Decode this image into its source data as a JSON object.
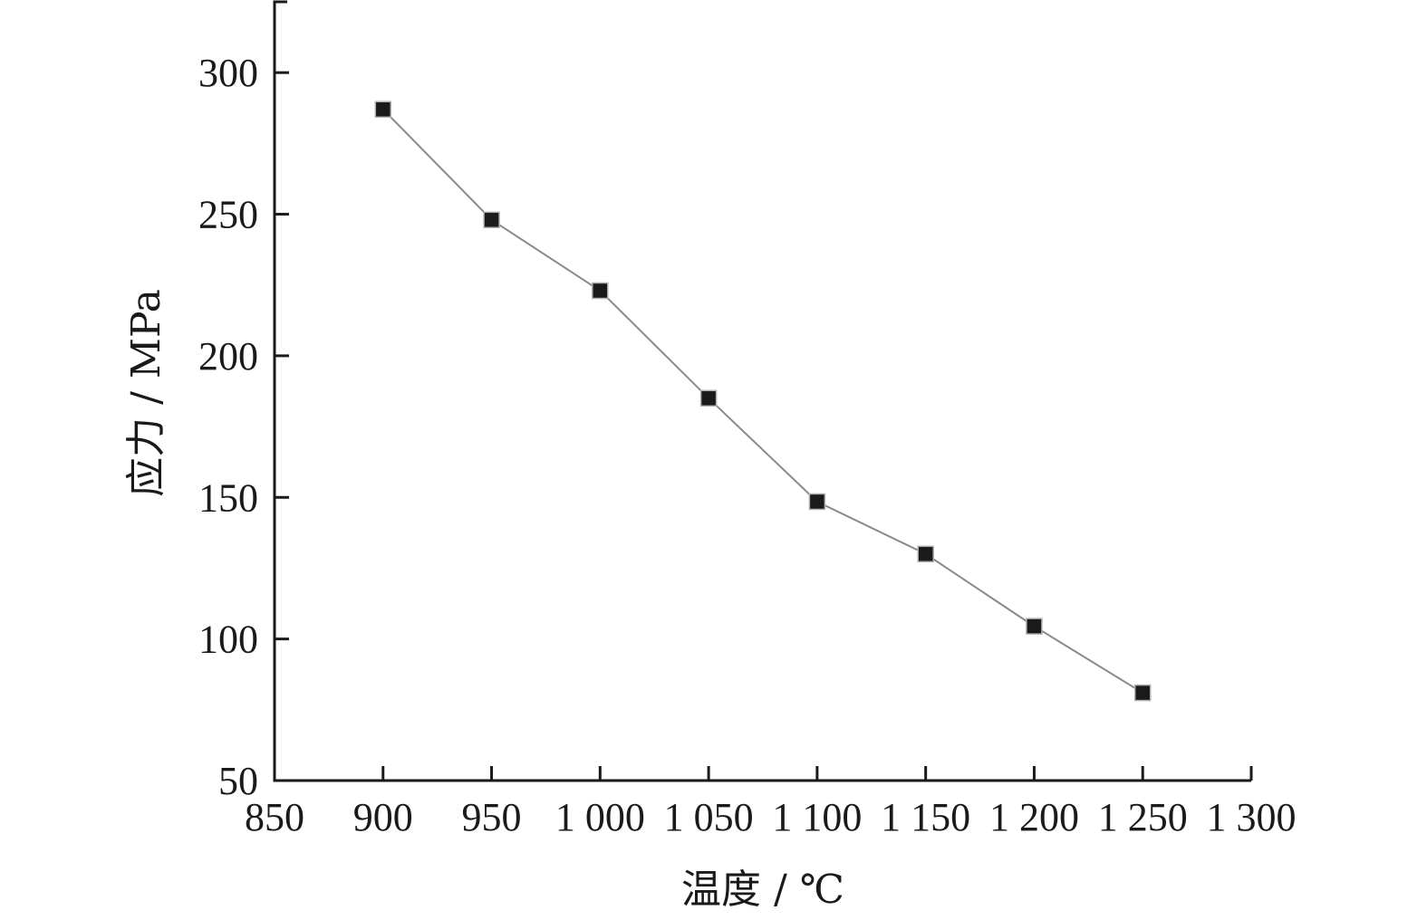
{
  "chart_data": {
    "type": "line",
    "xlabel": "温度 / ℃",
    "ylabel": "应力 / MPa",
    "xlim": [
      850,
      1300
    ],
    "ylim": [
      50,
      325
    ],
    "x_ticks": [
      850,
      900,
      950,
      1000,
      1050,
      1100,
      1150,
      1200,
      1250,
      1300
    ],
    "x_tick_labels": [
      "850",
      "900",
      "950",
      "1 000",
      "1 050",
      "1 100",
      "1 150",
      "1 200",
      "1 250",
      "1 300"
    ],
    "y_ticks": [
      50,
      100,
      150,
      200,
      250,
      300
    ],
    "y_tick_labels": [
      "50",
      "100",
      "150",
      "200",
      "250",
      "300"
    ],
    "grid": false,
    "series": [
      {
        "x": [
          900,
          950,
          1000,
          1050,
          1100,
          1150,
          1200,
          1250
        ],
        "y": [
          287,
          248,
          223,
          185,
          148.5,
          130,
          104.5,
          81
        ],
        "marker": "square",
        "line_color": "#8a8a8a",
        "marker_color": "#1a1a1a"
      }
    ]
  }
}
